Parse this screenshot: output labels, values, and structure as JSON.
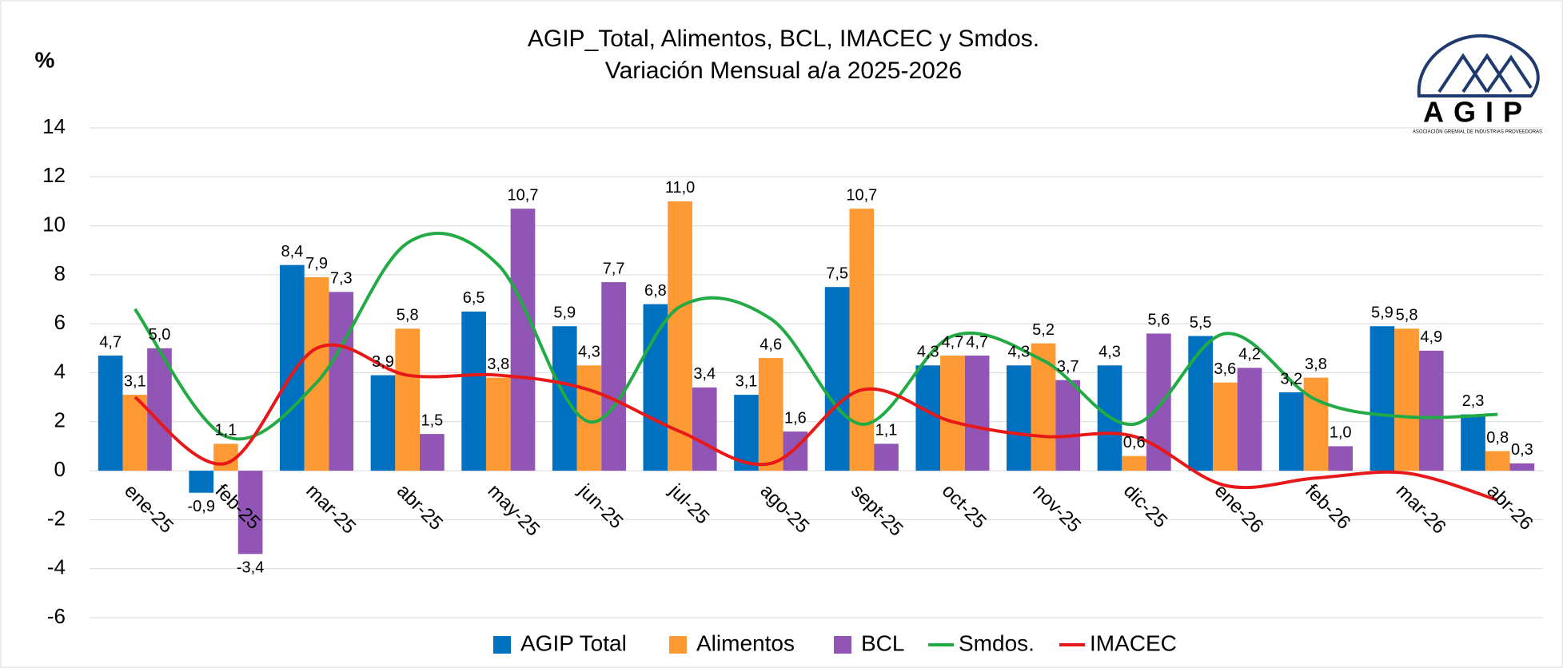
{
  "chart_data": {
    "type": "bar",
    "title": "AGIP_Total, Alimentos, BCL, IMACEC y Smdos.",
    "subtitle": "Variación Mensual a/a 2025-2026",
    "y_label": "%",
    "logo": {
      "text": "AGIP",
      "subtitle": "ASOCIACIÓN GREMIAL DE INDUSTRIAS PROVEEDORAS"
    },
    "categories": [
      "ene-25",
      "feb-25",
      "mar-25",
      "abr-25",
      "may-25",
      "jun-25",
      "jul-25",
      "ago-25",
      "sept-25",
      "oct-25",
      "nov-25",
      "dic-25",
      "ene-26",
      "feb-26",
      "mar-26",
      "abr-26"
    ],
    "series": [
      {
        "name": "AGIP Total",
        "type": "bar",
        "color": "#0070c0",
        "values": [
          4.7,
          -0.9,
          8.4,
          3.9,
          6.5,
          5.9,
          6.8,
          3.1,
          7.5,
          4.3,
          4.3,
          4.3,
          5.5,
          3.2,
          5.9,
          2.3
        ],
        "value_labels": [
          "4,7",
          "-0,9",
          "8,4",
          "3,9",
          "6,5",
          "5,9",
          "6,8",
          "3,1",
          "7,5",
          "4,3",
          "4,3",
          "4,3",
          "5,5",
          "3,2",
          "5,9",
          "2,3"
        ]
      },
      {
        "name": "Alimentos",
        "type": "bar",
        "color": "#ff9933",
        "values": [
          3.1,
          1.1,
          7.9,
          5.8,
          3.8,
          4.3,
          11.0,
          4.6,
          10.7,
          4.7,
          5.2,
          0.6,
          3.6,
          3.8,
          5.8,
          0.8
        ],
        "value_labels": [
          "3,1",
          "1,1",
          "7,9",
          "5,8",
          "3,8",
          "4,3",
          "11,0",
          "4,6",
          "10,7",
          "4,7",
          "5,2",
          "0,6",
          "3,6",
          "3,8",
          "5,8",
          "0,8"
        ]
      },
      {
        "name": "BCL",
        "type": "bar",
        "color": "#9055b5",
        "values": [
          5.0,
          -3.4,
          7.3,
          1.5,
          10.7,
          7.7,
          3.4,
          1.6,
          1.1,
          4.7,
          3.7,
          5.6,
          4.2,
          1.0,
          4.9,
          0.3
        ],
        "value_labels": [
          "5,0",
          "-3,4",
          "7,3",
          "1,5",
          "10,7",
          "7,7",
          "3,4",
          "1,6",
          "1,1",
          "4,7",
          "3,7",
          "5,6",
          "4,2",
          "1,0",
          "4,9",
          "0,3"
        ]
      },
      {
        "name": "Smdos.",
        "type": "line",
        "color": "#22aa44",
        "values": [
          6.6,
          1.4,
          3.6,
          9.3,
          8.4,
          2.0,
          6.7,
          6.2,
          1.9,
          5.5,
          4.5,
          1.9,
          5.6,
          2.9,
          2.2,
          2.3
        ]
      },
      {
        "name": "IMACEC",
        "type": "line",
        "color": "#e81818",
        "values": [
          3.0,
          0.3,
          5.0,
          3.9,
          3.9,
          3.3,
          1.6,
          0.3,
          3.3,
          2.0,
          1.4,
          1.4,
          -0.6,
          -0.3,
          -0.1,
          -1.2
        ]
      }
    ],
    "ylim": [
      -6,
      14
    ],
    "yticks": [
      -6,
      -4,
      -2,
      0,
      2,
      4,
      6,
      8,
      10,
      12,
      14
    ],
    "grid": true,
    "legend": "bottom"
  }
}
